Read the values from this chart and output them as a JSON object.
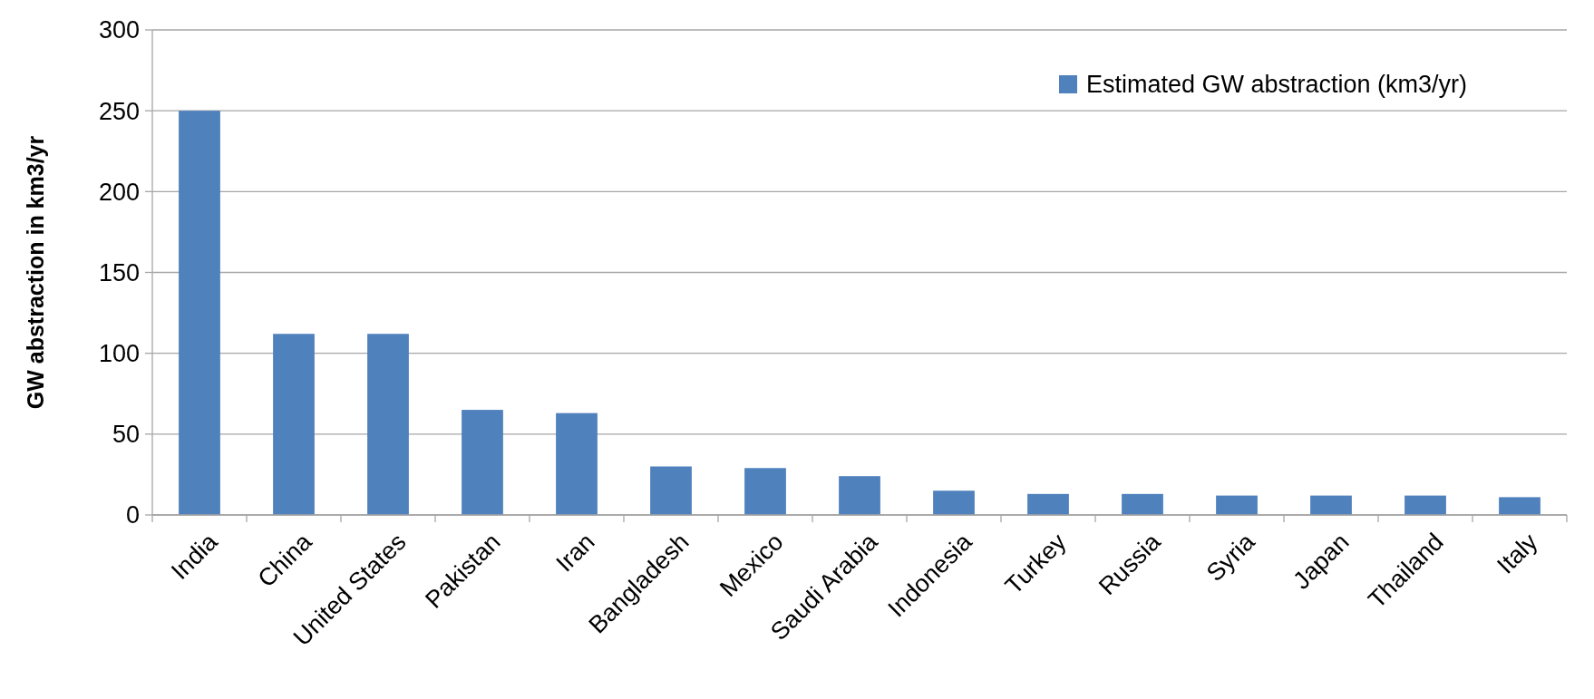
{
  "chart_data": {
    "type": "bar",
    "ylabel": "GW abstraction in km3/yr",
    "categories": [
      "India",
      "China",
      "United States",
      "Pakistan",
      "Iran",
      "Bangladesh",
      "Mexico",
      "Saudi Arabia",
      "Indonesia",
      "Turkey",
      "Russia",
      "Syria",
      "Japan",
      "Thailand",
      "Italy"
    ],
    "series": [
      {
        "name": "Estimated GW abstraction (km3/yr)",
        "color": "#4f81bd",
        "values": [
          250,
          112,
          112,
          65,
          63,
          30,
          29,
          24,
          15,
          13,
          13,
          12,
          12,
          12,
          11
        ]
      }
    ],
    "ylim": [
      0,
      300
    ],
    "yticks": [
      0,
      50,
      100,
      150,
      200,
      250,
      300
    ],
    "grid": "y",
    "legend": "top right"
  }
}
